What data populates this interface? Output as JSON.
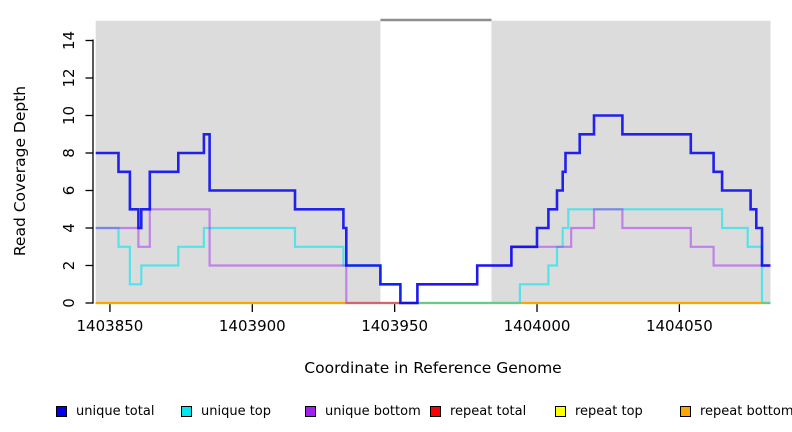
{
  "axes": {
    "y": {
      "label": "Read Coverage Depth",
      "tick_values": [
        0,
        2,
        4,
        6,
        8,
        10,
        12,
        14
      ]
    },
    "x": {
      "label": "Coordinate in Reference Genome",
      "tick_values": [
        1403850,
        1403900,
        1403950,
        1404000,
        1404050
      ]
    }
  },
  "legend": {
    "items": [
      {
        "label": "unique total",
        "color": "#0000EE"
      },
      {
        "label": "unique top",
        "color": "#00E5EE"
      },
      {
        "label": "unique bottom",
        "color": "#A020F0"
      },
      {
        "label": "repeat total",
        "color": "#FF0000"
      },
      {
        "label": "repeat top",
        "color": "#FFFF00"
      },
      {
        "label": "repeat bottom",
        "color": "#FFA500"
      }
    ]
  },
  "chart_data": {
    "type": "line",
    "subtype": "step",
    "title": "",
    "xlabel": "Coordinate in Reference Genome",
    "ylabel": "Read Coverage Depth",
    "xlim": [
      1403845,
      1404082
    ],
    "ylim": [
      0,
      15.25
    ],
    "x_ticks": [
      1403850,
      1403900,
      1403950,
      1404000,
      1404050
    ],
    "y_ticks": [
      0,
      2,
      4,
      6,
      8,
      10,
      12,
      14
    ],
    "grid": false,
    "legend_position": "bottom",
    "background_shading": {
      "color": "#DCDCDC",
      "regions": [
        [
          1403845,
          1403945
        ],
        [
          1403984,
          1404082
        ]
      ]
    },
    "gap_top_marker": {
      "x0": 1403945,
      "x1": 1403984,
      "color": "#8E8E8E"
    },
    "series": [
      {
        "name": "unique total",
        "color": "#0000EE",
        "step_points": [
          [
            1403845,
            8
          ],
          [
            1403853,
            7
          ],
          [
            1403857,
            5
          ],
          [
            1403860,
            4
          ],
          [
            1403861,
            5
          ],
          [
            1403864,
            7
          ],
          [
            1403874,
            8
          ],
          [
            1403883,
            9
          ],
          [
            1403885,
            6
          ],
          [
            1403915,
            5
          ],
          [
            1403932,
            4
          ],
          [
            1403933,
            2
          ],
          [
            1403945,
            1
          ],
          [
            1403952,
            0
          ],
          [
            1403958,
            1
          ],
          [
            1403979,
            2
          ],
          [
            1403991,
            3
          ],
          [
            1404000,
            4
          ],
          [
            1404004,
            5
          ],
          [
            1404007,
            6
          ],
          [
            1404009,
            7
          ],
          [
            1404010,
            8
          ],
          [
            1404015,
            9
          ],
          [
            1404020,
            10
          ],
          [
            1404030,
            9
          ],
          [
            1404054,
            8
          ],
          [
            1404062,
            7
          ],
          [
            1404065,
            6
          ],
          [
            1404075,
            5
          ],
          [
            1404077,
            4
          ],
          [
            1404079,
            2
          ]
        ]
      },
      {
        "name": "unique top",
        "color": "#00E5EE",
        "step_points": [
          [
            1403845,
            4
          ],
          [
            1403853,
            3
          ],
          [
            1403857,
            1
          ],
          [
            1403861,
            2
          ],
          [
            1403874,
            3
          ],
          [
            1403883,
            4
          ],
          [
            1403915,
            3
          ],
          [
            1403932,
            2
          ],
          [
            1403945,
            1
          ],
          [
            1403952,
            0
          ],
          [
            1403994,
            1
          ],
          [
            1404004,
            2
          ],
          [
            1404007,
            3
          ],
          [
            1404009,
            4
          ],
          [
            1404011,
            5
          ],
          [
            1404065,
            4
          ],
          [
            1404074,
            3
          ],
          [
            1404079,
            0
          ]
        ]
      },
      {
        "name": "unique bottom",
        "color": "#A020F0",
        "step_points": [
          [
            1403845,
            4
          ],
          [
            1403860,
            3
          ],
          [
            1403864,
            5
          ],
          [
            1403885,
            2
          ],
          [
            1403933,
            0
          ],
          [
            1403958,
            1
          ],
          [
            1403979,
            2
          ],
          [
            1403991,
            3
          ],
          [
            1404012,
            4
          ],
          [
            1404020,
            5
          ],
          [
            1404030,
            4
          ],
          [
            1404054,
            3
          ],
          [
            1404062,
            2
          ]
        ]
      },
      {
        "name": "repeat total",
        "color": "#FF0000",
        "step_points": [
          [
            1403845,
            0
          ]
        ]
      },
      {
        "name": "repeat top",
        "color": "#FFFF00",
        "step_points": [
          [
            1403845,
            0
          ]
        ]
      },
      {
        "name": "repeat bottom",
        "color": "#FFA500",
        "step_points": [
          [
            1403845,
            0
          ]
        ]
      }
    ]
  }
}
